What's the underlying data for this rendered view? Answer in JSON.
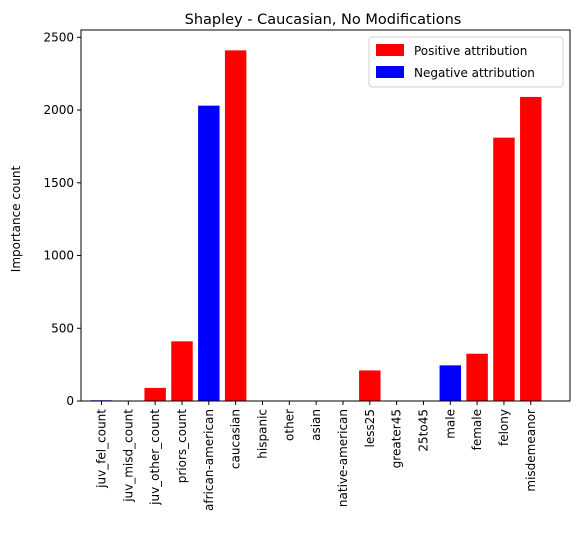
{
  "chart_data": {
    "type": "bar",
    "title": "Shapley - Caucasian, No Modifications",
    "xlabel": "",
    "ylabel": "Importance count",
    "ylim": [
      0,
      2550
    ],
    "yticks": [
      0,
      500,
      1000,
      1500,
      2000,
      2500
    ],
    "grid": false,
    "legend_position": "top-right",
    "legend": [
      {
        "label": "Positive attribution",
        "color": "#ff0000"
      },
      {
        "label": "Negative attribution",
        "color": "#0000ff"
      }
    ],
    "categories": [
      "juv_fel_count",
      "juv_misd_count",
      "juv_other_count",
      "priors_count",
      "african-american",
      "caucasian",
      "hispanic",
      "other",
      "asian",
      "native-american",
      "less25",
      "greater45",
      "25to45",
      "male",
      "female",
      "felony",
      "misdemeanor"
    ],
    "values": [
      5,
      0,
      90,
      410,
      2030,
      2410,
      0,
      0,
      0,
      0,
      210,
      0,
      0,
      245,
      325,
      1810,
      2090
    ],
    "attribution": [
      "negative",
      "positive",
      "positive",
      "positive",
      "negative",
      "positive",
      "positive",
      "positive",
      "positive",
      "positive",
      "positive",
      "positive",
      "positive",
      "negative",
      "positive",
      "positive",
      "positive"
    ]
  }
}
